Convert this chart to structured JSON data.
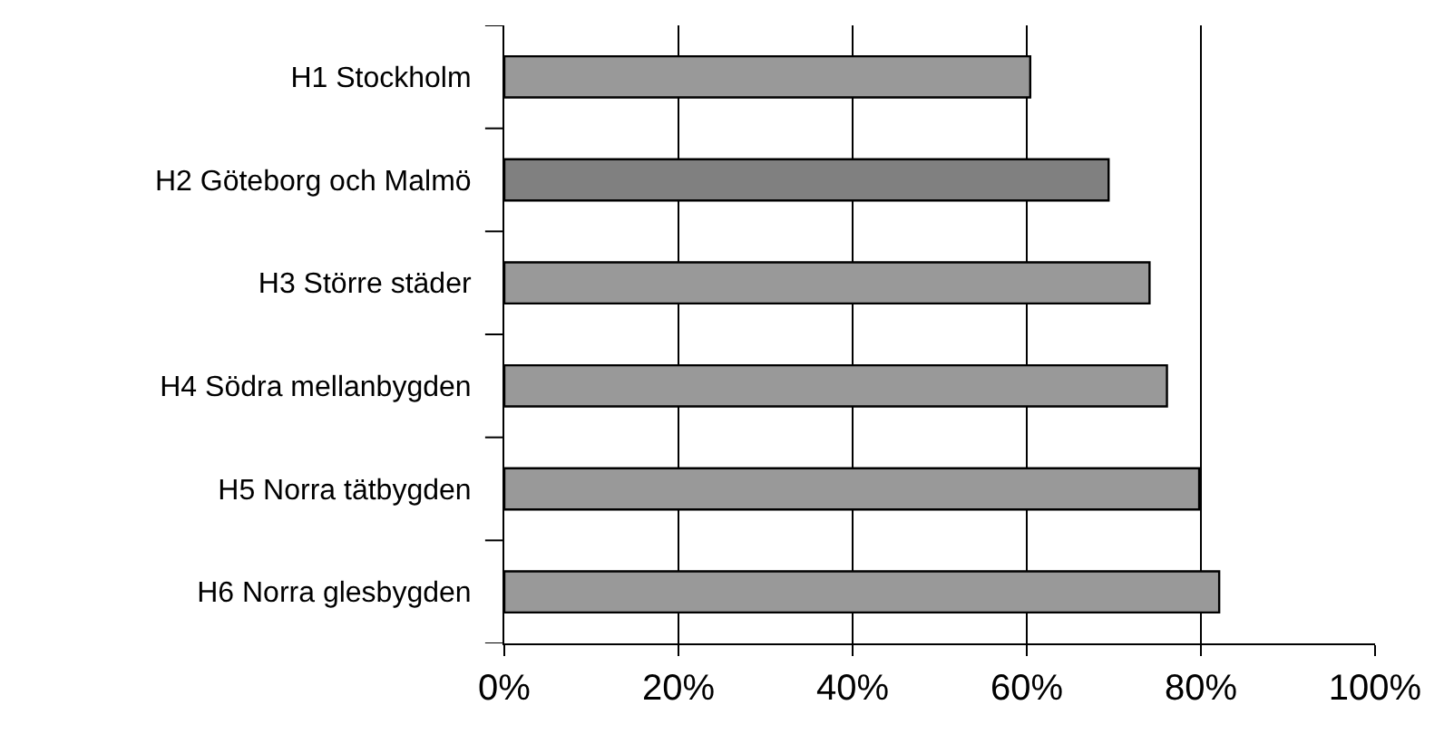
{
  "chart_data": {
    "type": "bar",
    "orientation": "horizontal",
    "categories": [
      "H1 Stockholm",
      "H2 Göteborg och Malmö",
      "H3 Större städer",
      "H4 Södra mellanbygden",
      "H5 Norra tätbygden",
      "H6 Norra glesbygden"
    ],
    "values": [
      60.4,
      69.4,
      74.1,
      76.1,
      79.8,
      82.1
    ],
    "colors": [
      "#999999",
      "#808080",
      "#999999",
      "#999999",
      "#999999",
      "#999999"
    ],
    "xlim": [
      0,
      100
    ],
    "xticks": [
      {
        "value": 0,
        "label": "0%"
      },
      {
        "value": 20,
        "label": "20%"
      },
      {
        "value": 40,
        "label": "40%"
      },
      {
        "value": 60,
        "label": "60%"
      },
      {
        "value": 80,
        "label": "80%"
      },
      {
        "value": 100,
        "label": "100%"
      }
    ],
    "grid": "x",
    "legend": false
  }
}
